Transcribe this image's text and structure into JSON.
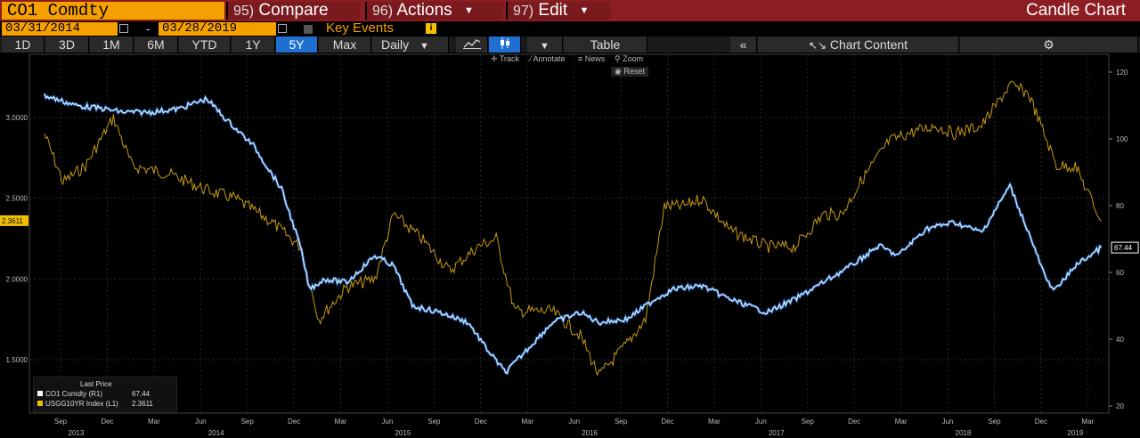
{
  "header": {
    "ticker": "CO1 Comdty",
    "compare": {
      "num": "95)",
      "label": "Compare"
    },
    "actions": {
      "num": "96)",
      "label": "Actions"
    },
    "edit": {
      "num": "97)",
      "label": "Edit"
    },
    "chart_type": "Candle Chart"
  },
  "dates": {
    "start": "03/31/2014",
    "separator": "-",
    "end": "03/28/2019",
    "key_events": "Key Events",
    "info": "i"
  },
  "toolbar": {
    "ranges": [
      "1D",
      "3D",
      "1M",
      "6M",
      "YTD",
      "1Y",
      "5Y",
      "Max"
    ],
    "active_range": "5Y",
    "frequency": "Daily",
    "table": "Table",
    "chart_content": "Chart Content"
  },
  "chart_tools": {
    "track": "Track",
    "annotate": "Annotate",
    "news": "News",
    "zoom": "Zoom",
    "reset": "Reset"
  },
  "legend": {
    "title": "Last Price",
    "rows": [
      {
        "name": "CO1 Comdty  (R1)",
        "value": "67.44",
        "color": "#ffffff"
      },
      {
        "name": "USGG10YR Index  (L1)",
        "value": "2.3611",
        "color": "#f0c000"
      }
    ]
  },
  "colors": {
    "brent_line": "#ffffff",
    "brent_glow": "#2a7fe0",
    "yield_line": "#c89a10",
    "accent": "#f6a000",
    "header_bg": "#8c1d22"
  },
  "chart_data": {
    "type": "line",
    "left_axis": {
      "ticks": [
        "3.0000",
        "2.5000",
        "2.0000",
        "1.5000"
      ],
      "values": [
        3.0,
        2.5,
        2.0,
        1.5
      ],
      "current_badge": "2.3611"
    },
    "right_axis": {
      "ticks": [
        "120",
        "100",
        "80",
        "60",
        "40",
        "20"
      ],
      "values": [
        120,
        100,
        80,
        60,
        40,
        20
      ],
      "current_badge": "67.44"
    },
    "x_month_labels": [
      "Sep",
      "Dec",
      "Mar",
      "Jun",
      "Sep",
      "Dec",
      "Mar",
      "Jun",
      "Sep",
      "Dec",
      "Mar",
      "Jun",
      "Sep",
      "Dec",
      "Mar",
      "Jun",
      "Sep",
      "Dec",
      "Mar",
      "Jun",
      "Sep",
      "Dec",
      "Mar"
    ],
    "x_year_labels": [
      "2013",
      "2014",
      "2015",
      "2016",
      "2017",
      "2018",
      "2019"
    ],
    "series": [
      {
        "name": "CO1 Comdty (R1)",
        "axis": "right",
        "points": [
          [
            2013.58,
            113
          ],
          [
            2013.75,
            110
          ],
          [
            2013.9,
            109
          ],
          [
            2014.0,
            108
          ],
          [
            2014.15,
            108
          ],
          [
            2014.3,
            109
          ],
          [
            2014.45,
            112
          ],
          [
            2014.55,
            106
          ],
          [
            2014.7,
            98
          ],
          [
            2014.85,
            85
          ],
          [
            2014.95,
            68
          ],
          [
            2015.0,
            55
          ],
          [
            2015.08,
            58
          ],
          [
            2015.2,
            57
          ],
          [
            2015.35,
            65
          ],
          [
            2015.45,
            62
          ],
          [
            2015.55,
            50
          ],
          [
            2015.7,
            48
          ],
          [
            2015.85,
            45
          ],
          [
            2015.95,
            37
          ],
          [
            2016.05,
            30
          ],
          [
            2016.15,
            36
          ],
          [
            2016.3,
            45
          ],
          [
            2016.45,
            48
          ],
          [
            2016.55,
            45
          ],
          [
            2016.7,
            46
          ],
          [
            2016.85,
            52
          ],
          [
            2016.95,
            55
          ],
          [
            2017.1,
            56
          ],
          [
            2017.25,
            52
          ],
          [
            2017.45,
            48
          ],
          [
            2017.6,
            52
          ],
          [
            2017.75,
            57
          ],
          [
            2017.9,
            62
          ],
          [
            2018.05,
            68
          ],
          [
            2018.15,
            65
          ],
          [
            2018.3,
            73
          ],
          [
            2018.45,
            75
          ],
          [
            2018.6,
            72
          ],
          [
            2018.75,
            86
          ],
          [
            2018.85,
            72
          ],
          [
            2018.95,
            57
          ],
          [
            2019.0,
            55
          ],
          [
            2019.1,
            62
          ],
          [
            2019.24,
            67.44
          ]
        ]
      },
      {
        "name": "USGG10YR Index (L1)",
        "axis": "left",
        "points": [
          [
            2013.58,
            2.9
          ],
          [
            2013.68,
            2.6
          ],
          [
            2013.8,
            2.7
          ],
          [
            2013.95,
            3.0
          ],
          [
            2014.05,
            2.7
          ],
          [
            2014.25,
            2.65
          ],
          [
            2014.45,
            2.55
          ],
          [
            2014.6,
            2.5
          ],
          [
            2014.8,
            2.35
          ],
          [
            2014.95,
            2.2
          ],
          [
            2015.05,
            1.75
          ],
          [
            2015.2,
            1.95
          ],
          [
            2015.35,
            2.0
          ],
          [
            2015.45,
            2.4
          ],
          [
            2015.6,
            2.25
          ],
          [
            2015.75,
            2.05
          ],
          [
            2015.9,
            2.2
          ],
          [
            2016.0,
            2.25
          ],
          [
            2016.1,
            1.8
          ],
          [
            2016.3,
            1.8
          ],
          [
            2016.45,
            1.65
          ],
          [
            2016.55,
            1.4
          ],
          [
            2016.7,
            1.6
          ],
          [
            2016.8,
            1.75
          ],
          [
            2016.9,
            2.45
          ],
          [
            2017.0,
            2.45
          ],
          [
            2017.1,
            2.5
          ],
          [
            2017.25,
            2.3
          ],
          [
            2017.45,
            2.2
          ],
          [
            2017.6,
            2.2
          ],
          [
            2017.75,
            2.4
          ],
          [
            2017.85,
            2.4
          ],
          [
            2017.95,
            2.6
          ],
          [
            2018.1,
            2.85
          ],
          [
            2018.2,
            2.9
          ],
          [
            2018.35,
            2.95
          ],
          [
            2018.45,
            2.9
          ],
          [
            2018.6,
            2.95
          ],
          [
            2018.75,
            3.2
          ],
          [
            2018.85,
            3.15
          ],
          [
            2018.95,
            2.85
          ],
          [
            2019.0,
            2.7
          ],
          [
            2019.1,
            2.7
          ],
          [
            2019.24,
            2.3611
          ]
        ]
      }
    ]
  }
}
